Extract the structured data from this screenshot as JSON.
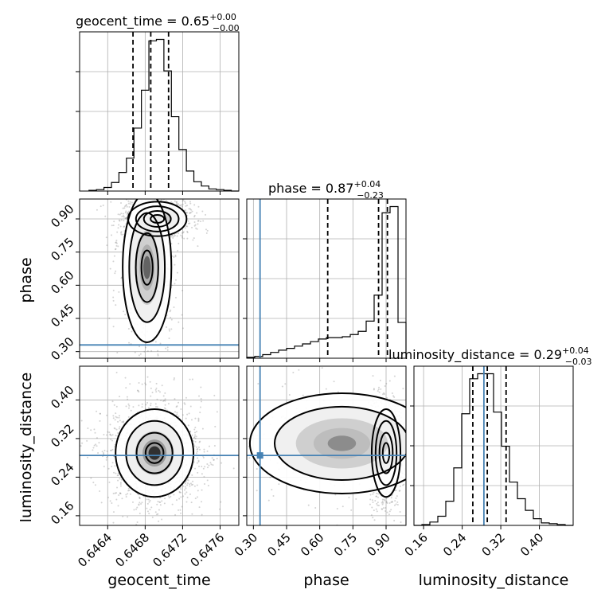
{
  "chart_data": {
    "type": "corner",
    "parameters": [
      "geocent_time",
      "phase",
      "luminosity_distance"
    ],
    "axis_labels": [
      "geocent_time",
      "phase",
      "luminosity_distance"
    ],
    "titles": [
      {
        "param": "geocent_time",
        "text": "geocent_time = 0.65",
        "sup": "+0.00",
        "sub": "−0.00"
      },
      {
        "param": "phase",
        "text": "phase = 0.87",
        "sup": "+0.04",
        "sub": "−0.23"
      },
      {
        "param": "luminosity_distance",
        "text": "luminosity_distance = 0.29",
        "sup": "+0.04",
        "sub": "−0.03"
      }
    ],
    "ranges": {
      "geocent_time": [
        0.6461,
        0.6478
      ],
      "phase": [
        0.27,
        0.99
      ],
      "luminosity_distance": [
        0.14,
        0.47
      ]
    },
    "ticks": {
      "geocent_time": {
        "values": [
          0.6464,
          0.6468,
          0.6472,
          0.6476
        ],
        "labels": [
          "0.6464",
          "0.6468",
          "0.6472",
          "0.6476"
        ]
      },
      "phase": {
        "values": [
          0.3,
          0.45,
          0.6,
          0.75,
          0.9
        ],
        "labels": [
          "0.30",
          "0.45",
          "0.60",
          "0.75",
          "0.90"
        ]
      },
      "luminosity_distance": {
        "values": [
          0.16,
          0.24,
          0.32,
          0.4
        ],
        "labels": [
          "0.16",
          "0.24",
          "0.32",
          "0.40"
        ]
      }
    },
    "truths": {
      "geocent_time": null,
      "phase": 0.33,
      "luminosity_distance": 0.285
    },
    "quantiles": {
      "geocent_time": [
        0.64667,
        0.64686,
        0.64705
      ],
      "phase": [
        0.636,
        0.866,
        0.906
      ],
      "luminosity_distance": [
        0.262,
        0.292,
        0.331
      ]
    },
    "histograms": {
      "geocent_time": {
        "edges": [
          0.6462,
          0.64628,
          0.64636,
          0.64644,
          0.64652,
          0.6466,
          0.64668,
          0.64676,
          0.64684,
          0.64692,
          0.647,
          0.64708,
          0.64716,
          0.64724,
          0.64732,
          0.6474,
          0.64748,
          0.64756,
          0.64764,
          0.64772,
          0.6478
        ],
        "counts": [
          1,
          2,
          5,
          12,
          26,
          46,
          88,
          141,
          210,
          212,
          168,
          104,
          58,
          28,
          13,
          7,
          3,
          2,
          1,
          0
        ]
      },
      "phase": {
        "edges": [
          0.27,
          0.306,
          0.342,
          0.378,
          0.414,
          0.45,
          0.486,
          0.522,
          0.558,
          0.594,
          0.63,
          0.666,
          0.702,
          0.738,
          0.774,
          0.81,
          0.846,
          0.882,
          0.918,
          0.954,
          0.99
        ],
        "counts": [
          2,
          4,
          8,
          13,
          18,
          22,
          27,
          32,
          37,
          43,
          46,
          46,
          48,
          53,
          60,
          83,
          141,
          325,
          339,
          80
        ]
      },
      "luminosity_distance": {
        "edges": [
          0.14,
          0.1565,
          0.173,
          0.1895,
          0.206,
          0.2225,
          0.239,
          0.2555,
          0.272,
          0.2885,
          0.305,
          0.3215,
          0.338,
          0.3545,
          0.371,
          0.3875,
          0.404,
          0.4205,
          0.437,
          0.4535,
          0.47
        ],
        "counts": [
          0,
          1,
          4,
          11,
          29,
          69,
          134,
          176,
          182,
          182,
          136,
          95,
          52,
          32,
          18,
          8,
          3,
          2,
          1,
          0
        ]
      }
    },
    "peaks_2d": [
      {
        "x": "geocent_time",
        "y": "phase",
        "mean": [
          0.64693,
          0.9
        ],
        "sigma": [
          0.00012,
          0.03
        ],
        "weight": 1.0
      },
      {
        "x": "geocent_time",
        "y": "phase",
        "mean": [
          0.64682,
          0.68
        ],
        "sigma": [
          0.0001,
          0.13
        ],
        "weight": 0.6
      },
      {
        "x": "geocent_time",
        "y": "luminosity_distance",
        "mean": [
          0.6469,
          0.29
        ],
        "sigma": [
          0.00016,
          0.035
        ],
        "weight": 1.0
      },
      {
        "x": "phase",
        "y": "luminosity_distance",
        "mean": [
          0.9,
          0.29
        ],
        "sigma": [
          0.025,
          0.035
        ],
        "weight": 1.0
      },
      {
        "x": "phase",
        "y": "luminosity_distance",
        "mean": [
          0.7,
          0.31
        ],
        "sigma": [
          0.16,
          0.04
        ],
        "weight": 0.35
      }
    ],
    "grid": true
  }
}
